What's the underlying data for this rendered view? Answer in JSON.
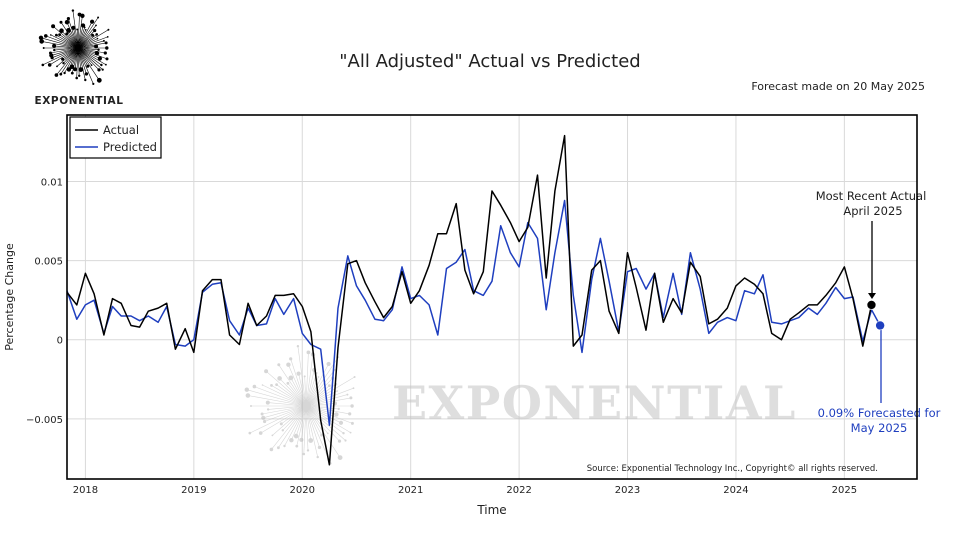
{
  "brand": {
    "name": "EXPONENTIAL",
    "watermark": "EXPONENTIAL"
  },
  "chart_data": {
    "type": "line",
    "title": "\"All Adjusted\" Actual vs Predicted",
    "subtitle": "Forecast made on 20 May 2025",
    "xlabel": "Time",
    "ylabel": "Percentage Change",
    "xlim": [
      2017.83,
      2025.67
    ],
    "ylim": [
      -0.0088,
      0.0142
    ],
    "x_ticks": [
      {
        "value": 2018,
        "label": "2018"
      },
      {
        "value": 2019,
        "label": "2019"
      },
      {
        "value": 2020,
        "label": "2020"
      },
      {
        "value": 2021,
        "label": "2021"
      },
      {
        "value": 2022,
        "label": "2022"
      },
      {
        "value": 2023,
        "label": "2023"
      },
      {
        "value": 2024,
        "label": "2024"
      },
      {
        "value": 2025,
        "label": "2025"
      }
    ],
    "y_ticks": [
      {
        "value": -0.005,
        "label": "−0.005"
      },
      {
        "value": 0,
        "label": "0"
      },
      {
        "value": 0.005,
        "label": "0.005"
      },
      {
        "value": 0.01,
        "label": "0.01"
      }
    ],
    "grid": true,
    "legend_position": "top-left",
    "series": [
      {
        "name": "Actual",
        "color": "#000000",
        "points": [
          [
            2017.83,
            0.003
          ],
          [
            2017.92,
            0.0022
          ],
          [
            2018.0,
            0.0042
          ],
          [
            2018.08,
            0.0029
          ],
          [
            2018.17,
            0.0003
          ],
          [
            2018.25,
            0.0026
          ],
          [
            2018.33,
            0.0023
          ],
          [
            2018.42,
            0.0009
          ],
          [
            2018.5,
            0.0008
          ],
          [
            2018.58,
            0.0018
          ],
          [
            2018.67,
            0.002
          ],
          [
            2018.75,
            0.0023
          ],
          [
            2018.83,
            -0.0006
          ],
          [
            2018.92,
            0.0007
          ],
          [
            2019.0,
            -0.0008
          ],
          [
            2019.08,
            0.0031
          ],
          [
            2019.17,
            0.0038
          ],
          [
            2019.25,
            0.0038
          ],
          [
            2019.33,
            0.0003
          ],
          [
            2019.42,
            -0.0003
          ],
          [
            2019.5,
            0.0023
          ],
          [
            2019.58,
            0.0009
          ],
          [
            2019.67,
            0.0015
          ],
          [
            2019.75,
            0.0028
          ],
          [
            2019.83,
            0.0028
          ],
          [
            2019.92,
            0.0029
          ],
          [
            2020.0,
            0.0021
          ],
          [
            2020.08,
            0.0005
          ],
          [
            2020.17,
            -0.0051
          ],
          [
            2020.25,
            -0.0079
          ],
          [
            2020.33,
            -0.0005
          ],
          [
            2020.42,
            0.0048
          ],
          [
            2020.5,
            0.005
          ],
          [
            2020.58,
            0.0036
          ],
          [
            2020.67,
            0.0024
          ],
          [
            2020.75,
            0.0014
          ],
          [
            2020.83,
            0.0021
          ],
          [
            2020.92,
            0.0043
          ],
          [
            2021.0,
            0.0023
          ],
          [
            2021.08,
            0.0031
          ],
          [
            2021.17,
            0.0047
          ],
          [
            2021.25,
            0.0067
          ],
          [
            2021.33,
            0.0067
          ],
          [
            2021.42,
            0.0086
          ],
          [
            2021.5,
            0.0044
          ],
          [
            2021.58,
            0.0029
          ],
          [
            2021.67,
            0.0043
          ],
          [
            2021.75,
            0.0094
          ],
          [
            2021.83,
            0.0085
          ],
          [
            2021.92,
            0.0074
          ],
          [
            2022.0,
            0.0062
          ],
          [
            2022.08,
            0.0071
          ],
          [
            2022.17,
            0.0104
          ],
          [
            2022.25,
            0.0039
          ],
          [
            2022.33,
            0.0094
          ],
          [
            2022.42,
            0.0129
          ],
          [
            2022.5,
            -0.0004
          ],
          [
            2022.58,
            0.0003
          ],
          [
            2022.67,
            0.0044
          ],
          [
            2022.75,
            0.005
          ],
          [
            2022.83,
            0.0018
          ],
          [
            2022.92,
            0.0004
          ],
          [
            2023.0,
            0.0055
          ],
          [
            2023.08,
            0.0033
          ],
          [
            2023.17,
            0.0006
          ],
          [
            2023.25,
            0.0042
          ],
          [
            2023.33,
            0.0011
          ],
          [
            2023.42,
            0.0026
          ],
          [
            2023.5,
            0.0017
          ],
          [
            2023.58,
            0.0049
          ],
          [
            2023.67,
            0.004
          ],
          [
            2023.75,
            0.001
          ],
          [
            2023.83,
            0.0013
          ],
          [
            2023.92,
            0.002
          ],
          [
            2024.0,
            0.0034
          ],
          [
            2024.08,
            0.0039
          ],
          [
            2024.17,
            0.0035
          ],
          [
            2024.25,
            0.0029
          ],
          [
            2024.33,
            0.0004
          ],
          [
            2024.42,
            0.0
          ],
          [
            2024.5,
            0.0013
          ],
          [
            2024.58,
            0.0017
          ],
          [
            2024.67,
            0.0022
          ],
          [
            2024.75,
            0.0022
          ],
          [
            2024.83,
            0.0028
          ],
          [
            2024.92,
            0.0036
          ],
          [
            2025.0,
            0.0046
          ],
          [
            2025.08,
            0.0026
          ],
          [
            2025.17,
            -0.0004
          ],
          [
            2025.25,
            0.0022
          ]
        ]
      },
      {
        "name": "Predicted",
        "color": "#1f3fbf",
        "points": [
          [
            2017.83,
            0.0031
          ],
          [
            2017.92,
            0.0013
          ],
          [
            2018.0,
            0.0022
          ],
          [
            2018.08,
            0.0025
          ],
          [
            2018.17,
            0.0004
          ],
          [
            2018.25,
            0.0021
          ],
          [
            2018.33,
            0.0015
          ],
          [
            2018.42,
            0.0015
          ],
          [
            2018.5,
            0.0012
          ],
          [
            2018.58,
            0.0015
          ],
          [
            2018.67,
            0.0011
          ],
          [
            2018.75,
            0.0021
          ],
          [
            2018.83,
            -0.0003
          ],
          [
            2018.92,
            -0.0004
          ],
          [
            2019.0,
            0.0
          ],
          [
            2019.08,
            0.003
          ],
          [
            2019.17,
            0.0035
          ],
          [
            2019.25,
            0.0036
          ],
          [
            2019.33,
            0.0012
          ],
          [
            2019.42,
            0.0003
          ],
          [
            2019.5,
            0.002
          ],
          [
            2019.58,
            0.0009
          ],
          [
            2019.67,
            0.001
          ],
          [
            2019.75,
            0.0026
          ],
          [
            2019.83,
            0.0016
          ],
          [
            2019.92,
            0.0026
          ],
          [
            2020.0,
            0.0004
          ],
          [
            2020.08,
            -0.0003
          ],
          [
            2020.17,
            -0.0006
          ],
          [
            2020.25,
            -0.0054
          ],
          [
            2020.33,
            0.002
          ],
          [
            2020.42,
            0.0053
          ],
          [
            2020.5,
            0.0034
          ],
          [
            2020.58,
            0.0025
          ],
          [
            2020.67,
            0.0013
          ],
          [
            2020.75,
            0.0012
          ],
          [
            2020.83,
            0.0019
          ],
          [
            2020.92,
            0.0046
          ],
          [
            2021.0,
            0.0026
          ],
          [
            2021.08,
            0.0028
          ],
          [
            2021.17,
            0.0022
          ],
          [
            2021.25,
            0.0003
          ],
          [
            2021.33,
            0.0045
          ],
          [
            2021.42,
            0.0049
          ],
          [
            2021.5,
            0.0057
          ],
          [
            2021.58,
            0.0031
          ],
          [
            2021.67,
            0.0028
          ],
          [
            2021.75,
            0.0037
          ],
          [
            2021.83,
            0.0072
          ],
          [
            2021.92,
            0.0055
          ],
          [
            2022.0,
            0.0046
          ],
          [
            2022.08,
            0.0074
          ],
          [
            2022.17,
            0.0064
          ],
          [
            2022.25,
            0.0019
          ],
          [
            2022.33,
            0.0055
          ],
          [
            2022.42,
            0.0088
          ],
          [
            2022.5,
            0.0028
          ],
          [
            2022.58,
            -0.0008
          ],
          [
            2022.67,
            0.0038
          ],
          [
            2022.75,
            0.0064
          ],
          [
            2022.83,
            0.0037
          ],
          [
            2022.92,
            0.0005
          ],
          [
            2023.0,
            0.0043
          ],
          [
            2023.08,
            0.0045
          ],
          [
            2023.17,
            0.0032
          ],
          [
            2023.25,
            0.0042
          ],
          [
            2023.33,
            0.0014
          ],
          [
            2023.42,
            0.0042
          ],
          [
            2023.5,
            0.0016
          ],
          [
            2023.58,
            0.0055
          ],
          [
            2023.67,
            0.0032
          ],
          [
            2023.75,
            0.0004
          ],
          [
            2023.83,
            0.0011
          ],
          [
            2023.92,
            0.0014
          ],
          [
            2024.0,
            0.0012
          ],
          [
            2024.08,
            0.0031
          ],
          [
            2024.17,
            0.0029
          ],
          [
            2024.25,
            0.0041
          ],
          [
            2024.33,
            0.0011
          ],
          [
            2024.42,
            0.001
          ],
          [
            2024.5,
            0.0012
          ],
          [
            2024.58,
            0.0014
          ],
          [
            2024.67,
            0.002
          ],
          [
            2024.75,
            0.0016
          ],
          [
            2024.83,
            0.0023
          ],
          [
            2024.92,
            0.0033
          ],
          [
            2025.0,
            0.0026
          ],
          [
            2025.08,
            0.0027
          ],
          [
            2025.17,
            -0.0001
          ],
          [
            2025.25,
            0.0019
          ],
          [
            2025.33,
            0.0009
          ]
        ]
      }
    ],
    "annotations": [
      {
        "text_lines": [
          "Most Recent Actual",
          "April 2025"
        ],
        "x": 2025.25,
        "y": 0.0022,
        "series": "Actual"
      },
      {
        "text_lines": [
          "0.09% Forecasted for",
          "May 2025"
        ],
        "x": 2025.33,
        "y": 0.0009,
        "series": "Predicted"
      }
    ],
    "source": "Source: Exponential Technology Inc., Copyright© all rights reserved."
  }
}
